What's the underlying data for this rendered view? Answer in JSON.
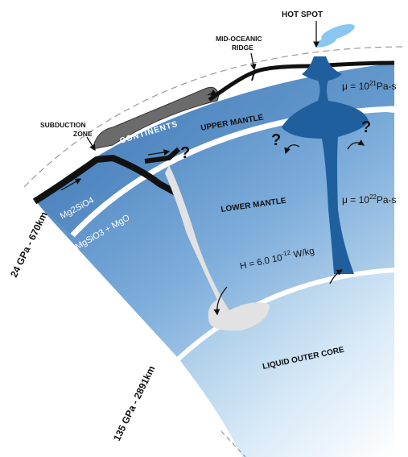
{
  "labels": {
    "hot_spot": "HOT SPOT",
    "mid_oceanic_ridge_1": "MID-OCEANIC",
    "mid_oceanic_ridge_2": "RIDGE",
    "subduction_zone_1": "SUBDUCTION",
    "subduction_zone_2": "ZONE",
    "continents": "CONTINENTS",
    "upper_mantle": "UPPER MANTLE",
    "lower_mantle": "LOWER MANTLE",
    "liquid_outer_core": "LIQUID OUTER CORE",
    "mg2sio4": "Mg2SiO4",
    "mgsio3_mgo": "MgSiO3 + MgO",
    "depth_670": "24 GPa - 670km",
    "depth_2891": "135 GPa - 2891km",
    "question_mark": "?"
  },
  "annotations": {
    "viscosity_upper_prefix": "μ = 10",
    "viscosity_upper_exp": "21",
    "viscosity_upper_unit": "Pa-s",
    "viscosity_lower_prefix": "μ = 10",
    "viscosity_lower_exp": "22",
    "viscosity_lower_unit": "Pa-s",
    "heating_prefix": "H = 6.0 10",
    "heating_exp": "-12",
    "heating_unit": " W/kg"
  },
  "colors": {
    "mantle_dark": "#3f78b8",
    "mantle_light": "#d3e6f5",
    "core_dark": "#8fbbe0",
    "core_light": "#ffffff",
    "plume": "#1f5f9e",
    "slab": "#111111",
    "slab_ghost": "#e2e2e2",
    "continent": "#6b6b6b",
    "hot_spot": "#8ac7f0"
  }
}
